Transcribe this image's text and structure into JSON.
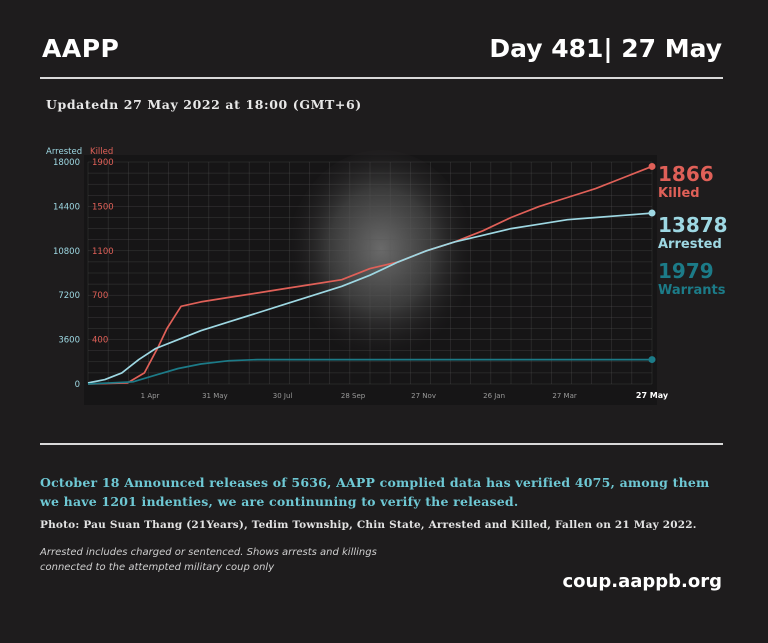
{
  "header": {
    "brand": "AAPP",
    "day": "Day 481| 27 May"
  },
  "updated": "Updatedn 27 May 2022 at 18:00 (GMT+6)",
  "announcement": "October 18 Announced releases of 5636, AAPP complied data has verified 4075, among them we have 1201 indenties, we are continuning to verify the released.",
  "photo_caption": "Photo: Pau Suan Thang (21Years), Tedim Township, Chin State, Arrested and Killed, Fallen on  21 May 2022.",
  "note_line1": "Arrested includes charged or sentenced. Shows arrests and killings",
  "note_line2": "connected to the attempted military coup only",
  "site_url": "coup.aappb.org",
  "colors": {
    "killed": "#e06058",
    "arrested": "#9ed8e3",
    "warrants": "#1c7b88",
    "grid": "#5a5a5a"
  },
  "chart_data": {
    "type": "line",
    "x_tick_labels": [
      "1 Apr",
      "31 May",
      "30 Jul",
      "28 Sep",
      "27 Nov",
      "26 Jan",
      "27 Mar",
      "27 May"
    ],
    "left_axis": {
      "label": "Arrested",
      "ticks": [
        "18000",
        "14400",
        "10800",
        "7200",
        "3600",
        "0"
      ],
      "range": [
        0,
        18000
      ]
    },
    "right_axis": {
      "label": "Killed",
      "ticks": [
        "1900",
        "1500",
        "1100",
        "700",
        "400"
      ],
      "range": [
        0,
        1900
      ]
    },
    "series": [
      {
        "name": "Killed",
        "axis": "right",
        "end_value": "1866",
        "end_label": "Killed",
        "points": [
          [
            0,
            0
          ],
          [
            0.07,
            0.005
          ],
          [
            0.1,
            0.05
          ],
          [
            0.125,
            0.17
          ],
          [
            0.14,
            0.25
          ],
          [
            0.155,
            0.31
          ],
          [
            0.165,
            0.35
          ],
          [
            0.2,
            0.37
          ],
          [
            0.25,
            0.39
          ],
          [
            0.3,
            0.41
          ],
          [
            0.35,
            0.43
          ],
          [
            0.4,
            0.45
          ],
          [
            0.45,
            0.47
          ],
          [
            0.5,
            0.52
          ],
          [
            0.55,
            0.55
          ],
          [
            0.6,
            0.6
          ],
          [
            0.65,
            0.64
          ],
          [
            0.7,
            0.69
          ],
          [
            0.75,
            0.75
          ],
          [
            0.8,
            0.8
          ],
          [
            0.85,
            0.84
          ],
          [
            0.9,
            0.88
          ],
          [
            0.95,
            0.93
          ],
          [
            1,
            0.98
          ]
        ]
      },
      {
        "name": "Arrested",
        "axis": "left",
        "end_value": "13878",
        "end_label": "Arrested",
        "points": [
          [
            0,
            0.005
          ],
          [
            0.03,
            0.02
          ],
          [
            0.06,
            0.05
          ],
          [
            0.09,
            0.11
          ],
          [
            0.12,
            0.16
          ],
          [
            0.15,
            0.19
          ],
          [
            0.2,
            0.24
          ],
          [
            0.25,
            0.28
          ],
          [
            0.3,
            0.32
          ],
          [
            0.35,
            0.36
          ],
          [
            0.4,
            0.4
          ],
          [
            0.45,
            0.44
          ],
          [
            0.5,
            0.49
          ],
          [
            0.55,
            0.55
          ],
          [
            0.6,
            0.6
          ],
          [
            0.65,
            0.64
          ],
          [
            0.7,
            0.67
          ],
          [
            0.75,
            0.7
          ],
          [
            0.8,
            0.72
          ],
          [
            0.85,
            0.74
          ],
          [
            0.9,
            0.75
          ],
          [
            0.95,
            0.76
          ],
          [
            1,
            0.77
          ]
        ]
      },
      {
        "name": "Warrants",
        "axis": "left",
        "end_value": "1979",
        "end_label": "Warrants",
        "points": [
          [
            0,
            0
          ],
          [
            0.08,
            0.01
          ],
          [
            0.12,
            0.04
          ],
          [
            0.16,
            0.07
          ],
          [
            0.2,
            0.09
          ],
          [
            0.25,
            0.105
          ],
          [
            0.3,
            0.11
          ],
          [
            0.4,
            0.11
          ],
          [
            0.6,
            0.11
          ],
          [
            0.8,
            0.11
          ],
          [
            1,
            0.11
          ]
        ]
      }
    ],
    "grid": true,
    "legend": "right"
  }
}
